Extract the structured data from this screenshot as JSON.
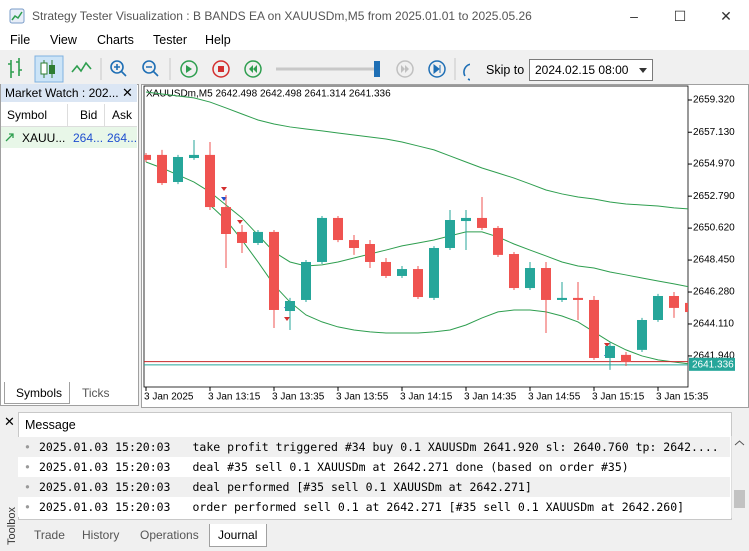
{
  "window": {
    "title": "Strategy Tester Visualization : B BANDS EA on XAUUSDm,M5 from 2025.01.01 to 2025.05.26",
    "menu": [
      "File",
      "View",
      "Charts",
      "Tester",
      "Help"
    ]
  },
  "toolbar": {
    "skip_label": "Skip to",
    "skip_value": "2024.02.15 08:00"
  },
  "market_watch": {
    "title": "Market Watch : 202...",
    "columns": [
      "Symbol",
      "Bid",
      "Ask"
    ],
    "rows": [
      [
        "XAUU...",
        "264...",
        "264..."
      ]
    ],
    "tabs": [
      "Symbols",
      "Ticks"
    ]
  },
  "chart_data": {
    "type": "candlestick",
    "header": "XAUUSDm,M5  2642.498 2642.498 2641.314 2641.336",
    "ylim": [
      2639.83,
      2660.27
    ],
    "yticks": [
      {
        "value": 2659.32,
        "label": "2659.320"
      },
      {
        "value": 2657.13,
        "label": "2657.130"
      },
      {
        "value": 2654.97,
        "label": "2654.970"
      },
      {
        "value": 2652.79,
        "label": "2652.790"
      },
      {
        "value": 2650.62,
        "label": "2650.620"
      },
      {
        "value": 2648.45,
        "label": "2648.450"
      },
      {
        "value": 2646.28,
        "label": "2646.280"
      },
      {
        "value": 2644.11,
        "label": "2644.110"
      },
      {
        "value": 2641.94,
        "label": "2641.940"
      }
    ],
    "xtick_labels": [
      "3 Jan 2025",
      "3 Jan 13:15",
      "3 Jan 13:35",
      "3 Jan 13:55",
      "3 Jan 14:15",
      "3 Jan 14:35",
      "3 Jan 14:55",
      "3 Jan 15:15",
      "3 Jan 15:35"
    ],
    "up_color": "#26a69a",
    "down_color": "#ef5350",
    "open": [
      2655.59,
      2655.59,
      2653.75,
      2655.38,
      2655.59,
      2652.05,
      2650.36,
      2649.61,
      2650.36,
      2644.99,
      2645.74,
      2648.32,
      2651.31,
      2649.81,
      2649.54,
      2648.32,
      2647.37,
      2647.84,
      2645.88,
      2649.27,
      2651.1,
      2651.31,
      2650.63,
      2648.86,
      2646.55,
      2647.91,
      2645.74,
      2645.88,
      2645.74,
      2641.8,
      2642.01,
      2642.35,
      2644.38,
      2646.01,
      2645.54
    ],
    "high": [
      2655.72,
      2655.93,
      2655.59,
      2656.6,
      2656.47,
      2652.87,
      2650.83,
      2650.49,
      2650.49,
      2645.88,
      2648.45,
      2651.44,
      2651.44,
      2650.15,
      2649.81,
      2648.59,
      2648.05,
      2648.05,
      2649.4,
      2651.85,
      2651.85,
      2652.73,
      2650.76,
      2649.0,
      2648.32,
      2648.32,
      2646.96,
      2646.96,
      2646.01,
      2642.89,
      2642.21,
      2644.52,
      2646.15,
      2646.28,
      2645.74
    ],
    "low": [
      2655.11,
      2653.55,
      2653.61,
      2655.25,
      2651.85,
      2647.91,
      2648.93,
      2649.47,
      2643.84,
      2643.7,
      2645.6,
      2648.18,
      2649.67,
      2648.8,
      2647.91,
      2647.23,
      2647.23,
      2645.81,
      2645.74,
      2649.13,
      2649.13,
      2650.49,
      2648.66,
      2646.42,
      2646.42,
      2643.5,
      2645.6,
      2644.38,
      2641.67,
      2640.99,
      2641.26,
      2642.21,
      2644.25,
      2644.52,
      2644.38
    ],
    "close": [
      2655.25,
      2653.68,
      2655.45,
      2655.59,
      2652.05,
      2650.22,
      2649.61,
      2650.36,
      2645.06,
      2645.67,
      2648.32,
      2651.31,
      2649.81,
      2649.27,
      2648.32,
      2647.37,
      2647.84,
      2645.94,
      2649.27,
      2651.17,
      2651.31,
      2650.63,
      2648.8,
      2646.55,
      2647.91,
      2645.74,
      2645.88,
      2645.74,
      2641.8,
      2642.62,
      2641.53,
      2644.38,
      2646.01,
      2645.2,
      2644.92
    ],
    "bands": [
      {
        "color": "#2e9e4f",
        "values": [
          2659.86,
          2659.73,
          2659.59,
          2659.46,
          2659.18,
          2658.78,
          2658.37,
          2657.96,
          2657.69,
          2657.49,
          2657.35,
          2657.22,
          2657.08,
          2656.94,
          2656.81,
          2656.67,
          2656.47,
          2656.2,
          2655.93,
          2655.52,
          2655.11,
          2654.7,
          2654.36,
          2654.02,
          2653.62,
          2653.21,
          2652.94,
          2652.73,
          2652.6,
          2652.39,
          2652.26,
          2652.19,
          2652.12,
          2651.99,
          2651.92
        ]
      },
      {
        "color": "#2e9e4f",
        "values": [
          2655.11,
          2654.7,
          2654.23,
          2653.75,
          2653.07,
          2652.19,
          2651.31,
          2650.15,
          2649.0,
          2648.32,
          2648.05,
          2648.12,
          2648.32,
          2648.59,
          2648.86,
          2649.13,
          2649.41,
          2649.61,
          2649.81,
          2650.09,
          2650.36,
          2650.36,
          2650.02,
          2649.54,
          2649.13,
          2648.73,
          2648.32,
          2648.05,
          2647.91,
          2647.64,
          2647.44,
          2647.23,
          2647.03,
          2646.83,
          2646.62
        ]
      },
      {
        "color": "#2e9e4f",
        "values": [
          null,
          null,
          null,
          null,
          2652.19,
          2651.17,
          2649.81,
          2648.32,
          2646.76,
          2645.6,
          2644.72,
          2644.25,
          2643.91,
          2643.7,
          2643.57,
          2643.5,
          2643.5,
          2643.5,
          2643.57,
          2643.7,
          2644.04,
          2644.52,
          2644.93,
          2645.06,
          2645.06,
          2644.93,
          2644.65,
          2644.25,
          2643.57,
          2642.89,
          2642.35,
          2641.94,
          2641.67,
          2641.53,
          2641.39
        ]
      }
    ],
    "price_lines": [
      {
        "color": "#c62828",
        "value": 2641.55
      },
      {
        "color": "#26a69a",
        "value": 2641.336
      }
    ]
  },
  "toolbox": {
    "label": "Toolbox",
    "columns": [
      "Message"
    ],
    "rows": [
      [
        "2025.01.03 15:20:03",
        "take profit triggered #34 buy 0.1 XAUUSDm 2641.920 sl: 2640.760 tp: 2642...."
      ],
      [
        "2025.01.03 15:20:03",
        "deal #35 sell 0.1 XAUUSDm at 2642.271 done (based on order #35)"
      ],
      [
        "2025.01.03 15:20:03",
        "deal performed [#35 sell 0.1 XAUUSDm at 2642.271]"
      ],
      [
        "2025.01.03 15:20:03",
        "order performed sell 0.1 at 2642.271 [#35 sell 0.1 XAUUSDm at 2642.260]"
      ]
    ],
    "tabs": [
      "Trade",
      "History",
      "Operations",
      "Journal"
    ]
  }
}
